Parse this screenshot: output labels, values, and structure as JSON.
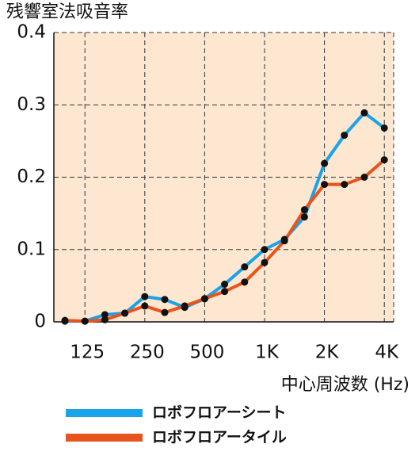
{
  "chart_data": {
    "type": "line",
    "y_axis_label": "残響室法吸音率",
    "x_axis_label": "中心周波数 (Hz)",
    "categories": [
      null,
      "125",
      null,
      null,
      "250",
      null,
      null,
      "500",
      null,
      null,
      "1K",
      null,
      null,
      "2K",
      null,
      null,
      "4K"
    ],
    "series": [
      {
        "name": "ロボフロアーシート",
        "color": "#1aa3e8",
        "values": [
          0.001,
          0.001,
          0.01,
          0.012,
          0.035,
          0.031,
          0.02,
          0.032,
          0.052,
          0.076,
          0.1,
          0.114,
          0.145,
          0.219,
          0.258,
          0.289,
          0.268
        ]
      },
      {
        "name": "ロボフロアータイル",
        "color": "#e8541e",
        "values": [
          0.002,
          0.001,
          0.003,
          0.012,
          0.022,
          0.013,
          0.022,
          0.032,
          0.042,
          0.055,
          0.082,
          0.112,
          0.155,
          0.19,
          0.19,
          0.2,
          0.224
        ]
      }
    ],
    "ylim": [
      0,
      0.4
    ],
    "yticks": [
      0,
      0.1,
      0.2,
      0.3,
      0.4
    ],
    "grid": true,
    "background": "#fde7d0",
    "marker_color": "#111111"
  }
}
